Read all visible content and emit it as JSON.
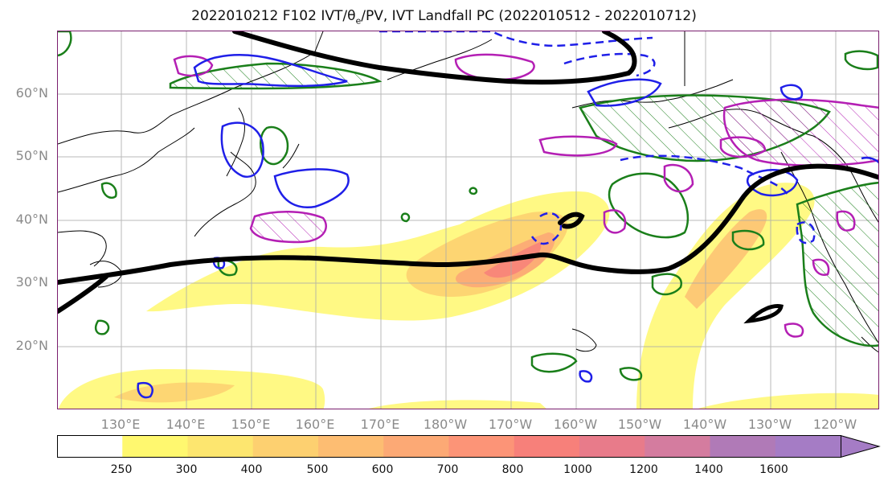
{
  "title": {
    "prefix": "2022010212 F102 IVT/θ",
    "sub": "e",
    "suffix": "/PV, IVT Landfall PC (2022010512 - 2022010712)"
  },
  "lat_labels": [
    "60°N",
    "50°N",
    "40°N",
    "30°N",
    "20°N"
  ],
  "lon_labels": [
    "130°E",
    "140°E",
    "150°E",
    "160°E",
    "170°E",
    "180°W",
    "170°W",
    "160°W",
    "150°W",
    "140°W",
    "130°W",
    "120°W"
  ],
  "colorbar": {
    "ticks": [
      "250",
      "300",
      "400",
      "500",
      "600",
      "700",
      "800",
      "1000",
      "1200",
      "1400",
      "1600"
    ],
    "colors": [
      "#ffffff",
      "#fff86f",
      "#fde66f",
      "#fdd070",
      "#fdbd72",
      "#fca975",
      "#fc9477",
      "#f7807a",
      "#e87b8a",
      "#d47c9f",
      "#b07ab7",
      "#a57cc5"
    ]
  },
  "colors": {
    "jet_contour": "#000000",
    "green_contour": "#1a7f1a",
    "magenta_contour": "#b41fb4",
    "blue_contour": "#1f1fe8",
    "coastline": "#000000"
  }
}
